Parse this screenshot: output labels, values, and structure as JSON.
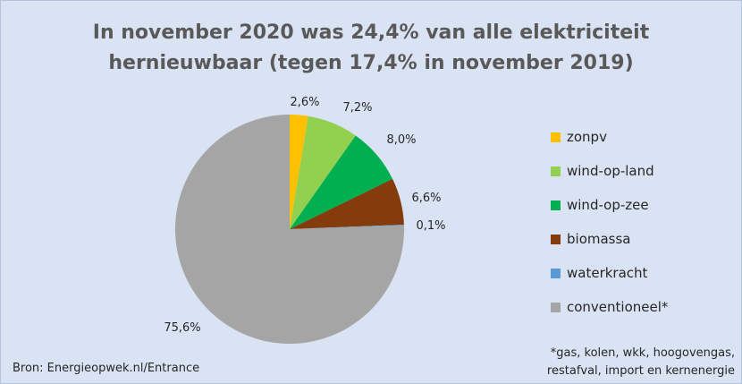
{
  "chart_data": {
    "type": "pie",
    "title": "In november 2020 was 24,4% van alle elektriciteit hernieuwbaar (tegen 17,4% in november 2019)",
    "title_lines": [
      "In november 2020 was 24,4% van alle elektriciteit",
      "hernieuwbaar (tegen 17,4% in november 2019)"
    ],
    "categories": [
      "zonpv",
      "wind-op-land",
      "wind-op-zee",
      "biomassa",
      "waterkracht",
      "conventioneel*"
    ],
    "values": [
      2.6,
      7.2,
      8.0,
      6.6,
      0.1,
      75.6
    ],
    "labels": [
      "2,6%",
      "7,2%",
      "8,0%",
      "6,6%",
      "0,1%",
      "75,6%"
    ],
    "colors": [
      "#ffc000",
      "#92d050",
      "#00b050",
      "#843c0c",
      "#5b9bd5",
      "#a5a5a5"
    ],
    "legend_position": "right"
  },
  "source": "Bron: Energieopwek.nl/Entrance",
  "footnote_lines": [
    "*gas, kolen, wkk, hoogovengas,",
    "restafval, import en kernenergie"
  ]
}
